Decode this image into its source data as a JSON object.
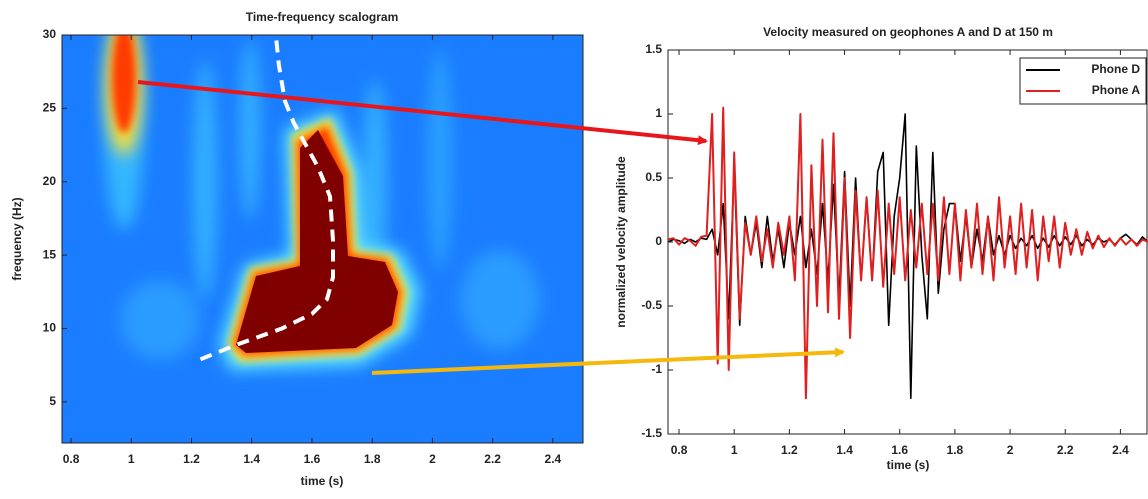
{
  "chart_data": [
    {
      "type": "scalogram",
      "title": "Time-frequency scalogram",
      "x_label": "time (s)",
      "y_label": "frequency (Hz)",
      "xlim": [
        0.77,
        2.5
      ],
      "ylim": [
        2.2,
        30
      ],
      "xticks": [
        0.8,
        1,
        1.2,
        1.4,
        1.6,
        1.8,
        2,
        2.2,
        2.4
      ],
      "yticks": [
        5,
        10,
        15,
        20,
        25,
        30
      ],
      "curve": {
        "color": "#ffffff",
        "x": [
          1.23,
          1.35,
          1.5,
          1.6,
          1.65,
          1.67,
          1.67,
          1.66,
          1.62,
          1.58,
          1.54,
          1.51,
          1.49,
          1.48
        ],
        "y": [
          7.9,
          8.9,
          10,
          11,
          12,
          13.5,
          16,
          19,
          21,
          22.5,
          24,
          25.5,
          28,
          30
        ]
      }
    },
    {
      "type": "line",
      "title": "Velocity measured on geophones A and D at 150 m",
      "x_label": "time (s)",
      "y_label": "normalized velocity amplitude",
      "xlim": [
        0.76,
        2.5
      ],
      "ylim": [
        -1.5,
        1.5
      ],
      "xticks": [
        0.8,
        1,
        1.2,
        1.4,
        1.6,
        1.8,
        2,
        2.2,
        2.4
      ],
      "yticks": [
        -1.5,
        -1,
        -0.5,
        0,
        0.5,
        1,
        1.5
      ],
      "legend": "upper right",
      "x": [
        0.76,
        0.78,
        0.8,
        0.82,
        0.84,
        0.86,
        0.88,
        0.9,
        0.92,
        0.94,
        0.96,
        0.98,
        1.0,
        1.02,
        1.04,
        1.06,
        1.08,
        1.1,
        1.12,
        1.14,
        1.16,
        1.18,
        1.2,
        1.22,
        1.24,
        1.26,
        1.28,
        1.3,
        1.32,
        1.34,
        1.36,
        1.38,
        1.4,
        1.42,
        1.44,
        1.46,
        1.48,
        1.5,
        1.52,
        1.54,
        1.56,
        1.58,
        1.6,
        1.62,
        1.64,
        1.66,
        1.68,
        1.7,
        1.72,
        1.74,
        1.76,
        1.78,
        1.8,
        1.82,
        1.84,
        1.86,
        1.88,
        1.9,
        1.92,
        1.94,
        1.96,
        1.98,
        2.0,
        2.02,
        2.04,
        2.06,
        2.08,
        2.1,
        2.12,
        2.14,
        2.16,
        2.18,
        2.2,
        2.22,
        2.24,
        2.26,
        2.28,
        2.3,
        2.32,
        2.34,
        2.36,
        2.38,
        2.4,
        2.42,
        2.44,
        2.46,
        2.48,
        2.5
      ],
      "series": [
        {
          "name": "Phone D",
          "color": "#000000",
          "values": [
            0.0,
            0.02,
            0.01,
            -0.01,
            0.02,
            0.0,
            0.03,
            0.02,
            0.1,
            -0.1,
            0.3,
            -0.6,
            0.6,
            -0.65,
            0.2,
            -0.1,
            0.15,
            -0.2,
            0.2,
            -0.15,
            0.1,
            -0.2,
            0.15,
            -0.1,
            0.2,
            -0.2,
            0.1,
            -0.25,
            0.3,
            -0.3,
            0.45,
            -0.45,
            0.55,
            -0.5,
            0.5,
            -0.3,
            0.35,
            -0.3,
            0.55,
            0.7,
            -0.65,
            0.2,
            0.5,
            1.0,
            -1.22,
            0.75,
            -0.1,
            -0.6,
            0.7,
            -0.4,
            0.1,
            0.3,
            0.3,
            -0.15,
            0.2,
            -0.2,
            0.1,
            -0.15,
            0.2,
            -0.1,
            0.05,
            -0.1,
            0.05,
            -0.05,
            0.03,
            -0.03,
            0.05,
            -0.05,
            0.03,
            -0.04,
            0.05,
            -0.03,
            0.04,
            -0.02,
            0.05,
            -0.03,
            0.02,
            -0.02,
            0.03,
            0.0,
            0.02,
            -0.02,
            0.03,
            0.06,
            0.02,
            -0.02,
            0.04,
            0.0
          ]
        },
        {
          "name": "Phone A",
          "color": "#e02020",
          "values": [
            0.02,
            0.03,
            -0.02,
            0.03,
            0.01,
            -0.03,
            0.04,
            0.05,
            1.0,
            -0.95,
            1.05,
            -1.0,
            0.7,
            -0.6,
            0.15,
            -0.1,
            0.2,
            -0.15,
            0.1,
            -0.2,
            0.15,
            -0.1,
            0.2,
            -0.3,
            1.0,
            -1.22,
            0.6,
            -0.5,
            0.8,
            -0.55,
            0.85,
            -0.6,
            0.5,
            -0.75,
            0.4,
            -0.3,
            0.35,
            -0.3,
            0.4,
            -0.35,
            0.3,
            -0.25,
            0.35,
            -0.3,
            0.25,
            -0.2,
            0.3,
            -0.25,
            0.3,
            -0.3,
            0.35,
            -0.25,
            0.3,
            -0.3,
            0.25,
            -0.2,
            0.3,
            -0.25,
            0.2,
            -0.3,
            0.35,
            -0.2,
            0.2,
            -0.25,
            0.3,
            -0.2,
            0.25,
            -0.3,
            0.2,
            -0.15,
            0.2,
            -0.2,
            0.15,
            -0.1,
            0.1,
            -0.1,
            0.08,
            -0.05,
            0.05,
            -0.04,
            0.03,
            -0.03,
            0.03,
            -0.02,
            0.02,
            -0.03,
            0.02,
            0.0
          ]
        }
      ]
    }
  ]
}
